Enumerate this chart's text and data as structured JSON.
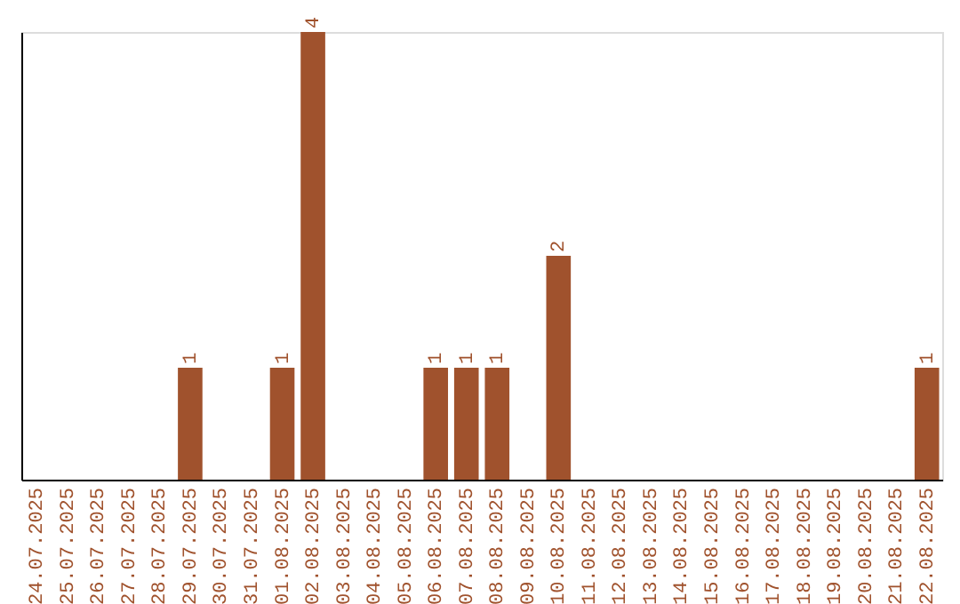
{
  "chart_data": {
    "type": "bar",
    "categories": [
      "24.07.2025",
      "25.07.2025",
      "26.07.2025",
      "27.07.2025",
      "28.07.2025",
      "29.07.2025",
      "30.07.2025",
      "31.07.2025",
      "01.08.2025",
      "02.08.2025",
      "03.08.2025",
      "04.08.2025",
      "05.08.2025",
      "06.08.2025",
      "07.08.2025",
      "08.08.2025",
      "09.08.2025",
      "10.08.2025",
      "11.08.2025",
      "12.08.2025",
      "13.08.2025",
      "14.08.2025",
      "15.08.2025",
      "16.08.2025",
      "17.08.2025",
      "18.08.2025",
      "19.08.2025",
      "20.08.2025",
      "21.08.2025",
      "22.08.2025"
    ],
    "values": [
      0,
      0,
      0,
      0,
      0,
      1,
      0,
      0,
      1,
      4,
      0,
      0,
      0,
      1,
      1,
      1,
      0,
      2,
      0,
      0,
      0,
      0,
      0,
      0,
      0,
      0,
      0,
      0,
      0,
      1
    ],
    "value_labels": [
      null,
      null,
      null,
      null,
      null,
      "1",
      null,
      null,
      "1",
      "4",
      null,
      null,
      null,
      "1",
      "1",
      "1",
      null,
      "2",
      null,
      null,
      null,
      null,
      null,
      null,
      null,
      null,
      null,
      null,
      null,
      "1"
    ],
    "color": "#a0522d",
    "tick_labels": "x",
    "grid": false
  }
}
